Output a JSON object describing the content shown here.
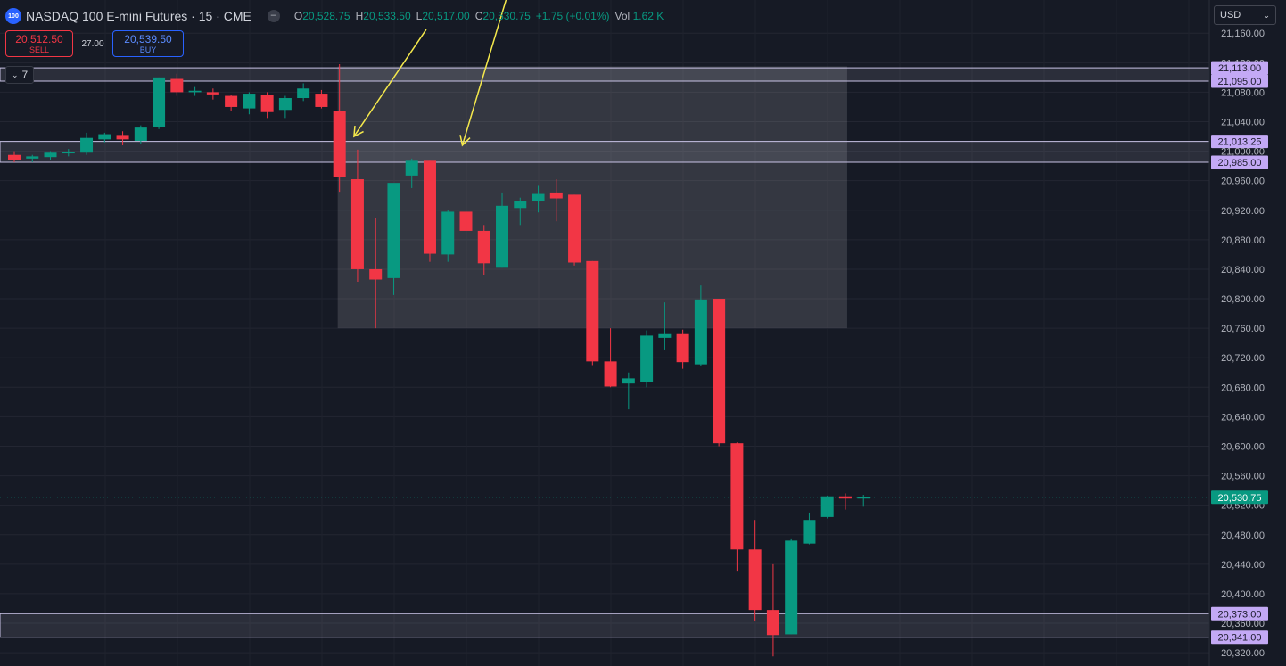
{
  "header": {
    "symbol_logo": "100",
    "title": "NASDAQ 100 E-mini Futures · 15 · CME",
    "ohlc": {
      "o_key": "O",
      "o_val": "20,528.75",
      "h_key": "H",
      "h_val": "20,533.50",
      "l_key": "L",
      "l_val": "20,517.00",
      "c_key": "C",
      "c_val": "20,530.75",
      "change": "+1.75 (+0.01%)",
      "vol_key": "Vol",
      "vol_val": "1.62 K"
    },
    "eye_icon": "eye-icon"
  },
  "trade": {
    "sell_price": "20,512.50",
    "sell_label": "SELL",
    "spread": "27.00",
    "buy_price": "20,539.50",
    "buy_label": "BUY"
  },
  "indicators_toggle": {
    "icon": "chevron-down-icon",
    "count": "7"
  },
  "currency": {
    "value": "USD",
    "icon": "chevron-down-icon"
  },
  "colors": {
    "up": "#089981",
    "down": "#f23645",
    "background": "#161a25",
    "zone_label": "#c3a9f5",
    "arrow": "#f5e94c",
    "price_tag": "#089981"
  },
  "chart_data": {
    "type": "candlestick",
    "y_ticks": [
      21160,
      21120,
      21080,
      21040,
      21000,
      20960,
      20920,
      20880,
      20840,
      20800,
      20760,
      20720,
      20680,
      20640,
      20600,
      20560,
      20520,
      20480,
      20440,
      20400,
      20360,
      20320
    ],
    "y_tick_labels": [
      "21,160.00",
      "21,120.00",
      "21,080.00",
      "21,040.00",
      "21,000.00",
      "20,960.00",
      "20,920.00",
      "20,880.00",
      "20,840.00",
      "20,800.00",
      "20,760.00",
      "20,720.00",
      "20,680.00",
      "20,640.00",
      "20,600.00",
      "20,560.00",
      "20,520.00",
      "20,480.00",
      "20,440.00",
      "20,400.00",
      "20,360.00",
      "20,320.00"
    ],
    "ylim": [
      20302,
      21205
    ],
    "bar_count": 48,
    "candles": [
      [
        20995,
        21000,
        20985,
        20988
      ],
      [
        20990,
        20995,
        20985,
        20993
      ],
      [
        20992,
        21000,
        20988,
        20998
      ],
      [
        20997,
        21003,
        20993,
        20999
      ],
      [
        20998,
        21025,
        20995,
        21018
      ],
      [
        21016,
        21025,
        21012,
        21023
      ],
      [
        21022,
        21027,
        21008,
        21016
      ],
      [
        21014,
        21035,
        21010,
        21032
      ],
      [
        21033,
        21100,
        21030,
        21100
      ],
      [
        21098,
        21105,
        21075,
        21080
      ],
      [
        21080,
        21087,
        21075,
        21082
      ],
      [
        21080,
        21085,
        21070,
        21077
      ],
      [
        21075,
        21076,
        21055,
        21060
      ],
      [
        21058,
        21080,
        21050,
        21078
      ],
      [
        21076,
        21080,
        21045,
        21053
      ],
      [
        21056,
        21075,
        21045,
        21072
      ],
      [
        21072,
        21092,
        21068,
        21085
      ],
      [
        21078,
        21083,
        21058,
        21060
      ],
      [
        21055,
        21118,
        20945,
        20965
      ],
      [
        20962,
        21002,
        20823,
        20840
      ],
      [
        20840,
        20910,
        20760,
        20826
      ],
      [
        20828,
        20955,
        20805,
        20957
      ],
      [
        20967,
        20990,
        20950,
        20987
      ],
      [
        20987,
        20987,
        20850,
        20861
      ],
      [
        20860,
        20920,
        20850,
        20918
      ],
      [
        20918,
        20990,
        20880,
        20892
      ],
      [
        20892,
        20900,
        20832,
        20848
      ],
      [
        20842,
        20944,
        20842,
        20926
      ],
      [
        20923,
        20937,
        20900,
        20933
      ],
      [
        20932,
        20953,
        20917,
        20942
      ],
      [
        20944,
        20962,
        20905,
        20936
      ],
      [
        20941,
        20941,
        20845,
        20849
      ],
      [
        20851,
        20851,
        20710,
        20715
      ],
      [
        20715,
        20760,
        20680,
        20681
      ],
      [
        20685,
        20700,
        20650,
        20692
      ],
      [
        20687,
        20757,
        20680,
        20750
      ],
      [
        20747,
        20795,
        20730,
        20752
      ],
      [
        20752,
        20758,
        20705,
        20714
      ],
      [
        20711,
        20818,
        20709,
        20799
      ],
      [
        20800,
        20800,
        20600,
        20604
      ],
      [
        20604,
        20605,
        20430,
        20460
      ],
      [
        20460,
        20500,
        20363,
        20378
      ],
      [
        20378,
        20440,
        20315,
        20344
      ],
      [
        20345,
        20475,
        20345,
        20472
      ],
      [
        20468,
        20510,
        20467,
        20500
      ],
      [
        20504,
        20533,
        20502,
        20532
      ],
      [
        20532,
        20536,
        20514,
        20529
      ],
      [
        20529,
        20534,
        20518,
        20531
      ]
    ],
    "zones": [
      {
        "top": 21113,
        "bottom": 21095,
        "top_label": "21,113.00",
        "bottom_label": "21,095.00"
      },
      {
        "top": 21013.25,
        "bottom": 20985,
        "top_label": "21,013.25",
        "bottom_label": "20,985.00"
      },
      {
        "top": 20373,
        "bottom": 20341,
        "top_label": "20,373.00",
        "bottom_label": "20,341.00"
      }
    ],
    "highlight_box": {
      "from_bar": 18,
      "to_bar": 46,
      "top": 21115,
      "bottom": 20760
    },
    "arrows": [
      {
        "from_bar": 22.8,
        "from_price": 21165,
        "to_bar": 18.8,
        "to_price": 21020
      },
      {
        "from_bar": 27.4,
        "from_price": 21220,
        "to_bar": 24.8,
        "to_price": 21008
      }
    ],
    "last_price": 20530.75,
    "last_price_label": "20,530.75"
  }
}
